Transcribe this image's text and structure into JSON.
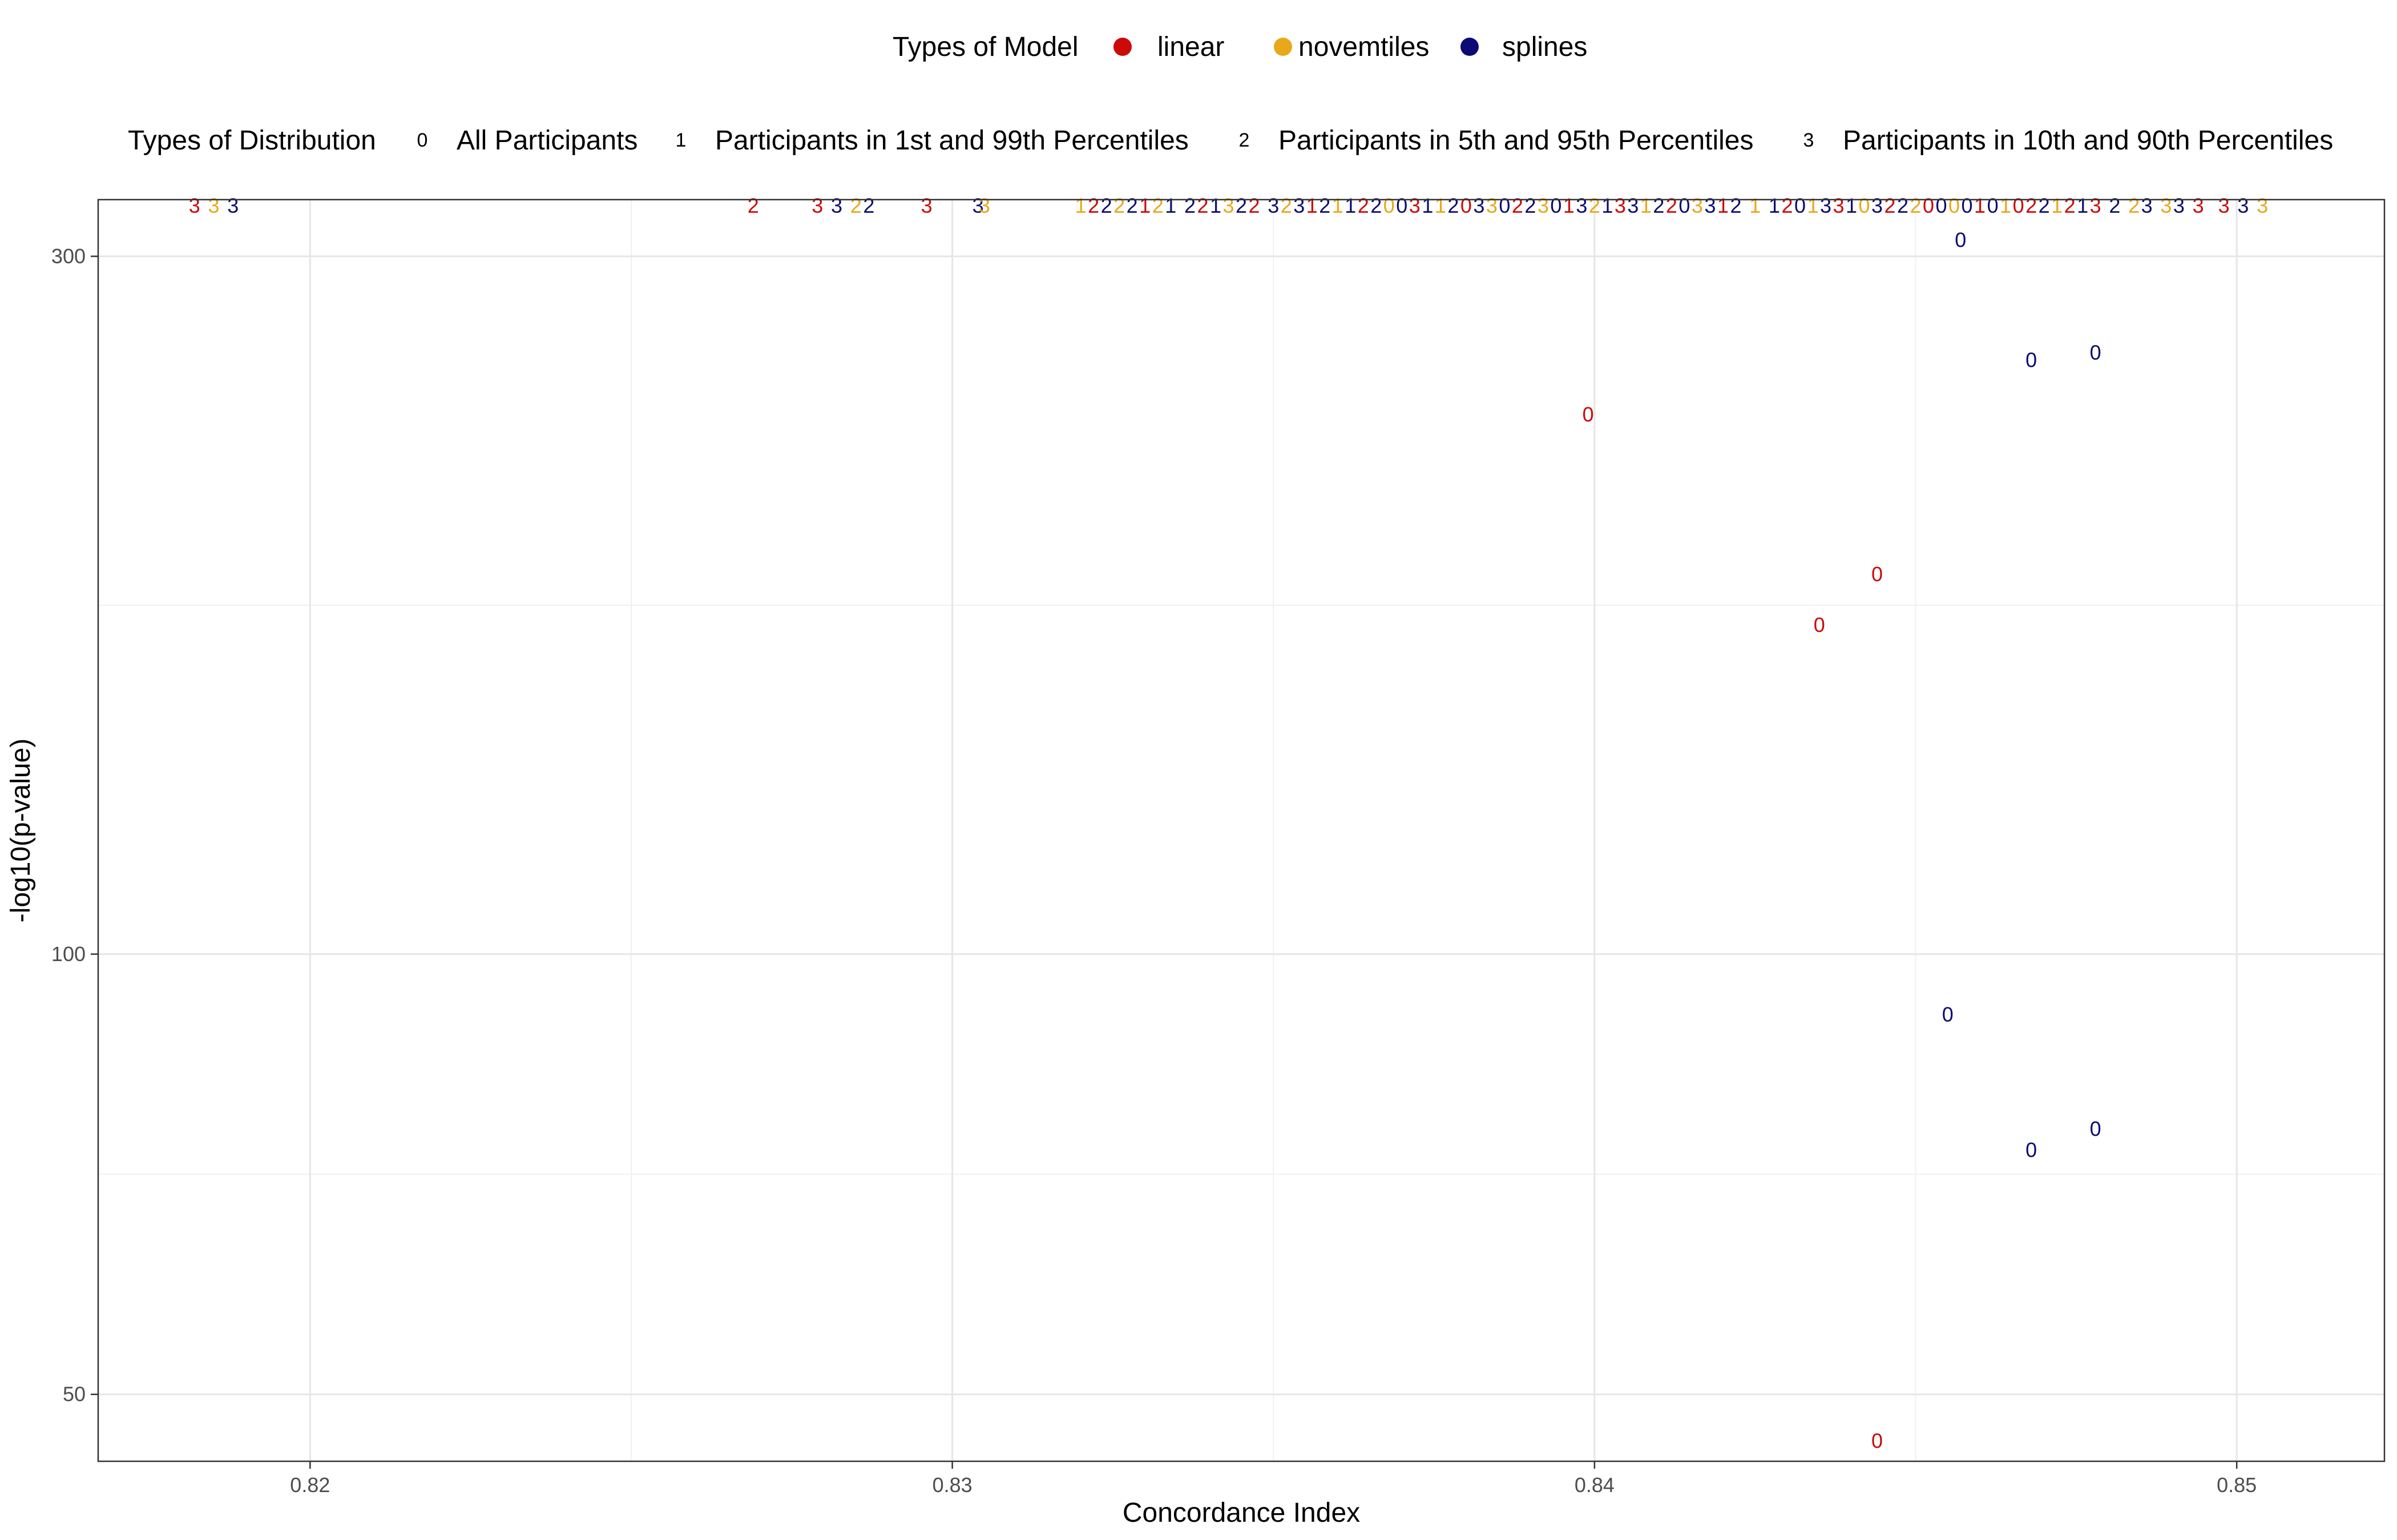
{
  "chart_data": {
    "type": "scatter",
    "xlabel": "Concordance Index",
    "ylabel": "-log10(p-value)",
    "x_ticks": [
      "0.82",
      "0.83",
      "0.84",
      "0.85"
    ],
    "y_ticks": [
      "50",
      "100",
      "300"
    ],
    "xlim": [
      0.8167,
      0.8523
    ],
    "ylim": [
      45,
      328
    ],
    "y_scale": "log10",
    "grid": true,
    "legend_position": "top",
    "legend_model": {
      "title": "Types of Model",
      "items": [
        {
          "label": "linear",
          "color": "#cc0a0a"
        },
        {
          "label": "novemtiles",
          "color": "#e8a81a"
        },
        {
          "label": "splines",
          "color": "#0b0b73"
        }
      ]
    },
    "legend_distribution": {
      "title": "Types of Distribution",
      "items": [
        {
          "shape": "0",
          "label": "All Participants"
        },
        {
          "shape": "1",
          "label": "Participants in 1st and 99th Percentiles"
        },
        {
          "shape": "2",
          "label": "Participants in 5th and 95th Percentiles"
        },
        {
          "shape": "3",
          "label": "Participants in 10th and 90th Percentiles"
        }
      ]
    },
    "points": [
      {
        "x": 0.8457,
        "y": 308,
        "model": "splines",
        "dist": "0"
      },
      {
        "x": 0.8468,
        "y": 255,
        "model": "splines",
        "dist": "0"
      },
      {
        "x": 0.8478,
        "y": 258,
        "model": "splines",
        "dist": "0"
      },
      {
        "x": 0.8399,
        "y": 234,
        "model": "linear",
        "dist": "0"
      },
      {
        "x": 0.8444,
        "y": 182,
        "model": "linear",
        "dist": "0"
      },
      {
        "x": 0.8435,
        "y": 168,
        "model": "linear",
        "dist": "0"
      },
      {
        "x": 0.8455,
        "y": 91,
        "model": "splines",
        "dist": "0"
      },
      {
        "x": 0.8478,
        "y": 76,
        "model": "splines",
        "dist": "0"
      },
      {
        "x": 0.8468,
        "y": 73.5,
        "model": "splines",
        "dist": "0"
      },
      {
        "x": 0.8444,
        "y": 46.5,
        "model": "linear",
        "dist": "0"
      },
      {
        "x": 0.8182,
        "y": 325,
        "model": "linear",
        "dist": "3"
      },
      {
        "x": 0.8185,
        "y": 325,
        "model": "novemtiles",
        "dist": "3"
      },
      {
        "x": 0.8188,
        "y": 325,
        "model": "splines",
        "dist": "3"
      },
      {
        "x": 0.8269,
        "y": 325,
        "model": "linear",
        "dist": "2"
      },
      {
        "x": 0.8279,
        "y": 325,
        "model": "linear",
        "dist": "3"
      },
      {
        "x": 0.8282,
        "y": 325,
        "model": "splines",
        "dist": "3"
      },
      {
        "x": 0.8285,
        "y": 325,
        "model": "novemtiles",
        "dist": "2"
      },
      {
        "x": 0.8287,
        "y": 325,
        "model": "splines",
        "dist": "2"
      },
      {
        "x": 0.8296,
        "y": 325,
        "model": "linear",
        "dist": "3"
      },
      {
        "x": 0.8304,
        "y": 325,
        "model": "splines",
        "dist": "3"
      },
      {
        "x": 0.8305,
        "y": 325,
        "model": "novemtiles",
        "dist": "3"
      },
      {
        "x": 0.832,
        "y": 325,
        "model": "novemtiles",
        "dist": "1"
      },
      {
        "x": 0.8322,
        "y": 325,
        "model": "linear",
        "dist": "2"
      },
      {
        "x": 0.8324,
        "y": 325,
        "model": "splines",
        "dist": "2"
      },
      {
        "x": 0.8326,
        "y": 325,
        "model": "novemtiles",
        "dist": "2"
      },
      {
        "x": 0.8328,
        "y": 325,
        "model": "splines",
        "dist": "2"
      },
      {
        "x": 0.833,
        "y": 325,
        "model": "linear",
        "dist": "1"
      },
      {
        "x": 0.8332,
        "y": 325,
        "model": "novemtiles",
        "dist": "2"
      },
      {
        "x": 0.8334,
        "y": 325,
        "model": "splines",
        "dist": "1"
      },
      {
        "x": 0.8337,
        "y": 325,
        "model": "splines",
        "dist": "2"
      },
      {
        "x": 0.8339,
        "y": 325,
        "model": "linear",
        "dist": "2"
      },
      {
        "x": 0.8341,
        "y": 325,
        "model": "splines",
        "dist": "1"
      },
      {
        "x": 0.8343,
        "y": 325,
        "model": "novemtiles",
        "dist": "3"
      },
      {
        "x": 0.8345,
        "y": 325,
        "model": "splines",
        "dist": "2"
      },
      {
        "x": 0.8347,
        "y": 325,
        "model": "linear",
        "dist": "2"
      },
      {
        "x": 0.835,
        "y": 325,
        "model": "splines",
        "dist": "3"
      },
      {
        "x": 0.8352,
        "y": 325,
        "model": "novemtiles",
        "dist": "2"
      },
      {
        "x": 0.8354,
        "y": 325,
        "model": "splines",
        "dist": "3"
      },
      {
        "x": 0.8356,
        "y": 325,
        "model": "linear",
        "dist": "1"
      },
      {
        "x": 0.8358,
        "y": 325,
        "model": "splines",
        "dist": "2"
      },
      {
        "x": 0.836,
        "y": 325,
        "model": "novemtiles",
        "dist": "1"
      },
      {
        "x": 0.8362,
        "y": 325,
        "model": "splines",
        "dist": "1"
      },
      {
        "x": 0.8364,
        "y": 325,
        "model": "linear",
        "dist": "2"
      },
      {
        "x": 0.8366,
        "y": 325,
        "model": "splines",
        "dist": "2"
      },
      {
        "x": 0.8368,
        "y": 325,
        "model": "novemtiles",
        "dist": "0"
      },
      {
        "x": 0.837,
        "y": 325,
        "model": "splines",
        "dist": "0"
      },
      {
        "x": 0.8372,
        "y": 325,
        "model": "linear",
        "dist": "3"
      },
      {
        "x": 0.8374,
        "y": 325,
        "model": "splines",
        "dist": "1"
      },
      {
        "x": 0.8376,
        "y": 325,
        "model": "novemtiles",
        "dist": "1"
      },
      {
        "x": 0.8378,
        "y": 325,
        "model": "splines",
        "dist": "2"
      },
      {
        "x": 0.838,
        "y": 325,
        "model": "linear",
        "dist": "0"
      },
      {
        "x": 0.8382,
        "y": 325,
        "model": "splines",
        "dist": "3"
      },
      {
        "x": 0.8384,
        "y": 325,
        "model": "novemtiles",
        "dist": "3"
      },
      {
        "x": 0.8386,
        "y": 325,
        "model": "splines",
        "dist": "0"
      },
      {
        "x": 0.8388,
        "y": 325,
        "model": "linear",
        "dist": "2"
      },
      {
        "x": 0.839,
        "y": 325,
        "model": "splines",
        "dist": "2"
      },
      {
        "x": 0.8392,
        "y": 325,
        "model": "novemtiles",
        "dist": "3"
      },
      {
        "x": 0.8394,
        "y": 325,
        "model": "splines",
        "dist": "0"
      },
      {
        "x": 0.8396,
        "y": 325,
        "model": "linear",
        "dist": "1"
      },
      {
        "x": 0.8398,
        "y": 325,
        "model": "splines",
        "dist": "3"
      },
      {
        "x": 0.84,
        "y": 325,
        "model": "novemtiles",
        "dist": "2"
      },
      {
        "x": 0.8402,
        "y": 325,
        "model": "splines",
        "dist": "1"
      },
      {
        "x": 0.8404,
        "y": 325,
        "model": "linear",
        "dist": "3"
      },
      {
        "x": 0.8406,
        "y": 325,
        "model": "splines",
        "dist": "3"
      },
      {
        "x": 0.8408,
        "y": 325,
        "model": "novemtiles",
        "dist": "1"
      },
      {
        "x": 0.841,
        "y": 325,
        "model": "splines",
        "dist": "2"
      },
      {
        "x": 0.8412,
        "y": 325,
        "model": "linear",
        "dist": "2"
      },
      {
        "x": 0.8414,
        "y": 325,
        "model": "splines",
        "dist": "0"
      },
      {
        "x": 0.8416,
        "y": 325,
        "model": "novemtiles",
        "dist": "3"
      },
      {
        "x": 0.8418,
        "y": 325,
        "model": "splines",
        "dist": "3"
      },
      {
        "x": 0.842,
        "y": 325,
        "model": "linear",
        "dist": "1"
      },
      {
        "x": 0.8422,
        "y": 325,
        "model": "splines",
        "dist": "2"
      },
      {
        "x": 0.8425,
        "y": 325,
        "model": "novemtiles",
        "dist": "1"
      },
      {
        "x": 0.8428,
        "y": 325,
        "model": "splines",
        "dist": "1"
      },
      {
        "x": 0.843,
        "y": 325,
        "model": "linear",
        "dist": "2"
      },
      {
        "x": 0.8432,
        "y": 325,
        "model": "splines",
        "dist": "0"
      },
      {
        "x": 0.8434,
        "y": 325,
        "model": "novemtiles",
        "dist": "1"
      },
      {
        "x": 0.8436,
        "y": 325,
        "model": "splines",
        "dist": "3"
      },
      {
        "x": 0.8438,
        "y": 325,
        "model": "linear",
        "dist": "3"
      },
      {
        "x": 0.844,
        "y": 325,
        "model": "splines",
        "dist": "1"
      },
      {
        "x": 0.8442,
        "y": 325,
        "model": "novemtiles",
        "dist": "0"
      },
      {
        "x": 0.8444,
        "y": 325,
        "model": "splines",
        "dist": "3"
      },
      {
        "x": 0.8446,
        "y": 325,
        "model": "linear",
        "dist": "2"
      },
      {
        "x": 0.8448,
        "y": 325,
        "model": "splines",
        "dist": "2"
      },
      {
        "x": 0.845,
        "y": 325,
        "model": "novemtiles",
        "dist": "2"
      },
      {
        "x": 0.8452,
        "y": 325,
        "model": "linear",
        "dist": "0"
      },
      {
        "x": 0.8454,
        "y": 325,
        "model": "splines",
        "dist": "0"
      },
      {
        "x": 0.8456,
        "y": 325,
        "model": "novemtiles",
        "dist": "0"
      },
      {
        "x": 0.8458,
        "y": 325,
        "model": "splines",
        "dist": "0"
      },
      {
        "x": 0.846,
        "y": 325,
        "model": "linear",
        "dist": "1"
      },
      {
        "x": 0.8462,
        "y": 325,
        "model": "splines",
        "dist": "0"
      },
      {
        "x": 0.8464,
        "y": 325,
        "model": "novemtiles",
        "dist": "1"
      },
      {
        "x": 0.8466,
        "y": 325,
        "model": "linear",
        "dist": "0"
      },
      {
        "x": 0.8468,
        "y": 325,
        "model": "linear",
        "dist": "2"
      },
      {
        "x": 0.847,
        "y": 325,
        "model": "splines",
        "dist": "2"
      },
      {
        "x": 0.8472,
        "y": 325,
        "model": "novemtiles",
        "dist": "1"
      },
      {
        "x": 0.8474,
        "y": 325,
        "model": "linear",
        "dist": "2"
      },
      {
        "x": 0.8476,
        "y": 325,
        "model": "splines",
        "dist": "1"
      },
      {
        "x": 0.8478,
        "y": 325,
        "model": "linear",
        "dist": "3"
      },
      {
        "x": 0.8481,
        "y": 325,
        "model": "splines",
        "dist": "2"
      },
      {
        "x": 0.8484,
        "y": 325,
        "model": "novemtiles",
        "dist": "2"
      },
      {
        "x": 0.8486,
        "y": 325,
        "model": "splines",
        "dist": "3"
      },
      {
        "x": 0.8489,
        "y": 325,
        "model": "novemtiles",
        "dist": "3"
      },
      {
        "x": 0.8491,
        "y": 325,
        "model": "splines",
        "dist": "3"
      },
      {
        "x": 0.8494,
        "y": 325,
        "model": "linear",
        "dist": "3"
      },
      {
        "x": 0.8498,
        "y": 325,
        "model": "linear",
        "dist": "3"
      },
      {
        "x": 0.8501,
        "y": 325,
        "model": "splines",
        "dist": "3"
      },
      {
        "x": 0.8504,
        "y": 325,
        "model": "novemtiles",
        "dist": "3"
      }
    ]
  }
}
